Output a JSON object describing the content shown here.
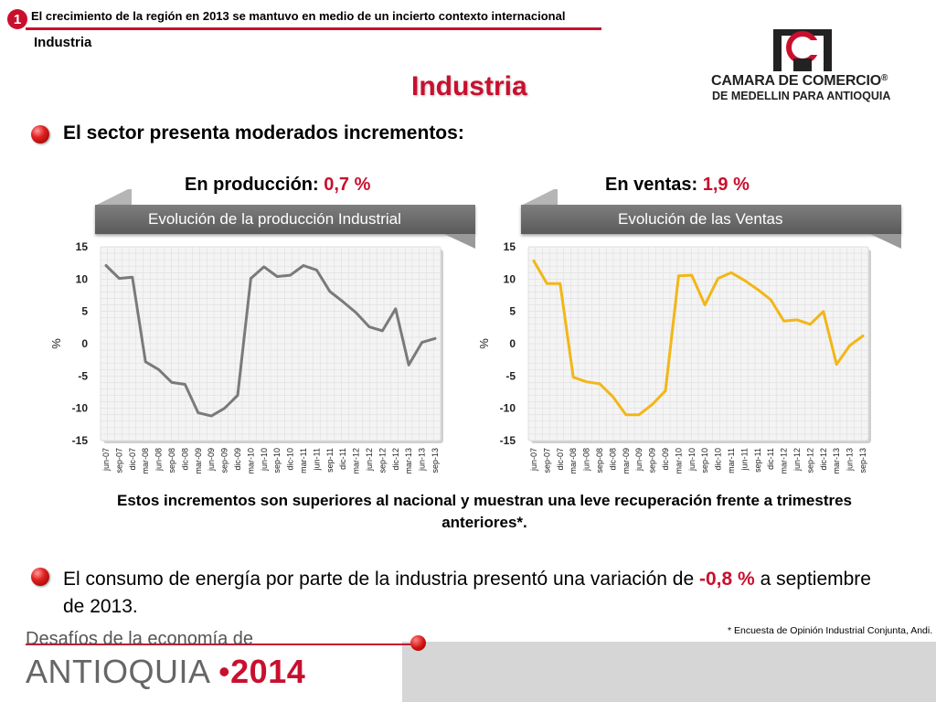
{
  "header": {
    "number": "1",
    "title": "El crecimiento de la región en 2013 se mantuvo en medio de un incierto contexto internacional",
    "section": "Industria"
  },
  "page_title": "Industria",
  "logo": {
    "name": "CAMARA DE COMERCIO",
    "registered": "®",
    "sub": "DE MEDELLIN PARA ANTIOQUIA"
  },
  "lead": "El sector presenta moderados incrementos:",
  "kpis": [
    {
      "label": "En producción: ",
      "value": "0,7 %"
    },
    {
      "label": "En ventas: ",
      "value": "1,9 %"
    }
  ],
  "note": "Estos incrementos son superiores al nacional y muestran una leve recuperación frente a trimestres  anteriores*.",
  "energy": {
    "text_before": "El consumo de energía por parte de la industria presentó una variación de ",
    "value": "-0,8 %",
    "text_after": " a septiembre de 2013."
  },
  "source": "* Encuesta de Opinión Industrial Conjunta, Andi.",
  "footer": {
    "subtitle": "Desafíos de la economía de",
    "main": "ANTIOQUIA",
    "separator": "•",
    "year": "2014"
  },
  "colors": {
    "accent": "#c8102e",
    "production_line": "#7a7a7a",
    "sales_line": "#f2b617"
  },
  "chart_data": [
    {
      "type": "line",
      "title": "Evolución de la producción Industrial",
      "ylabel": "%",
      "ylim": [
        -15,
        15
      ],
      "yticks": [
        15,
        10,
        5,
        0,
        -5,
        -10,
        -15
      ],
      "grid": true,
      "categories": [
        "jun-07",
        "sep-07",
        "dic-07",
        "mar-08",
        "jun-08",
        "sep-08",
        "dic-08",
        "mar-09",
        "jun-09",
        "sep-09",
        "dic-09",
        "mar-10",
        "jun-10",
        "sep-10",
        "dic-10",
        "mar-11",
        "jun-11",
        "sep-11",
        "dic-11",
        "mar-12",
        "jun-12",
        "sep-12",
        "dic-12",
        "mar-13",
        "jun-13",
        "sep-13"
      ],
      "series": [
        {
          "values": [
            12.1,
            10.1,
            10.3,
            -2.8,
            -4.0,
            -6.0,
            -6.3,
            -10.7,
            -11.2,
            -10.0,
            -8.0,
            10.1,
            11.9,
            10.4,
            10.6,
            12.1,
            11.4,
            8.1,
            6.5,
            4.8,
            2.6,
            2.0,
            5.4,
            -3.3,
            0.2,
            0.8
          ]
        }
      ]
    },
    {
      "type": "line",
      "title": "Evolución de las Ventas",
      "ylabel": "%",
      "ylim": [
        -15,
        15
      ],
      "yticks": [
        15,
        10,
        5,
        0,
        -5,
        -10,
        -15
      ],
      "grid": true,
      "categories": [
        "jun-07",
        "sep-07",
        "dic-07",
        "mar-08",
        "jun-08",
        "sep-08",
        "dic-08",
        "mar-09",
        "jun-09",
        "sep-09",
        "dic-09",
        "mar-10",
        "jun-10",
        "sep-10",
        "dic-10",
        "mar-11",
        "jun-11",
        "sep-11",
        "dic-11",
        "mar-12",
        "jun-12",
        "sep-12",
        "dic-12",
        "mar-13",
        "jun-13",
        "sep-13"
      ],
      "series": [
        {
          "values": [
            12.8,
            9.3,
            9.3,
            -5.2,
            -5.9,
            -6.2,
            -8.2,
            -11.0,
            -11.0,
            -9.4,
            -7.3,
            10.5,
            10.6,
            6.0,
            10.1,
            11.0,
            9.8,
            8.4,
            6.8,
            3.5,
            3.7,
            3.0,
            5.0,
            -3.2,
            -0.3,
            1.2
          ]
        }
      ]
    }
  ]
}
